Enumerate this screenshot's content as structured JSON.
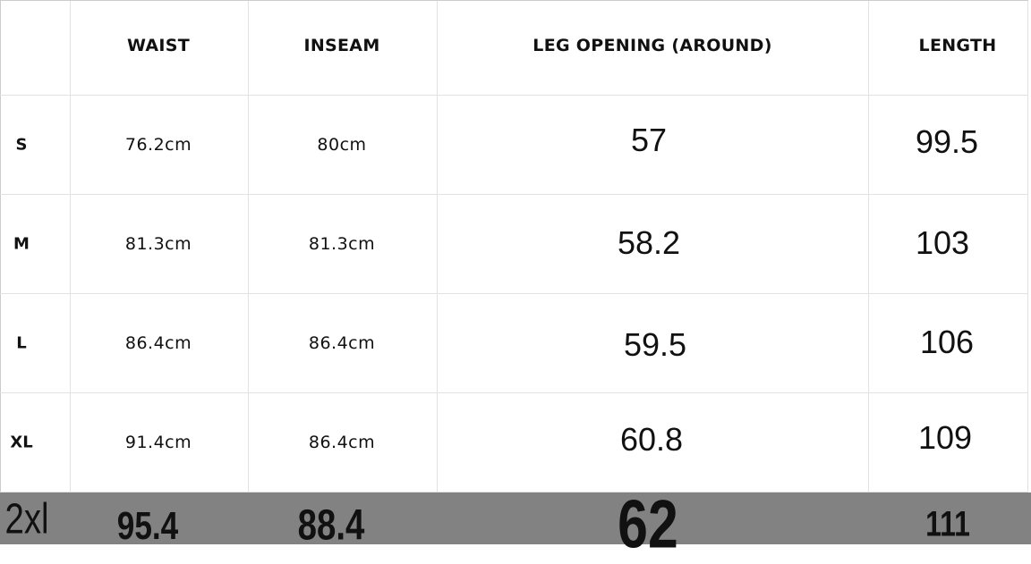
{
  "headers": [
    "",
    "WAIST",
    "INSEAM",
    "LEG OPENING (AROUND)",
    "LENGTH"
  ],
  "rows": [
    {
      "size": "S",
      "waist": "76.2cm",
      "inseam": "80cm",
      "leg_opening": "57",
      "length": "99.5"
    },
    {
      "size": "M",
      "waist": "81.3cm",
      "inseam": "81.3cm",
      "leg_opening": "58.2",
      "length": "103"
    },
    {
      "size": "L",
      "waist": "86.4cm",
      "inseam": "86.4cm",
      "leg_opening": "59.5",
      "length": "106"
    },
    {
      "size": "XL",
      "waist": "91.4cm",
      "inseam": "86.4cm",
      "leg_opening": "60.8",
      "length": "109"
    }
  ],
  "extra_row": {
    "size": "2xl",
    "waist": "95.4",
    "inseam": "88.4",
    "leg_opening": "62",
    "length": "111",
    "background": "#828282"
  }
}
